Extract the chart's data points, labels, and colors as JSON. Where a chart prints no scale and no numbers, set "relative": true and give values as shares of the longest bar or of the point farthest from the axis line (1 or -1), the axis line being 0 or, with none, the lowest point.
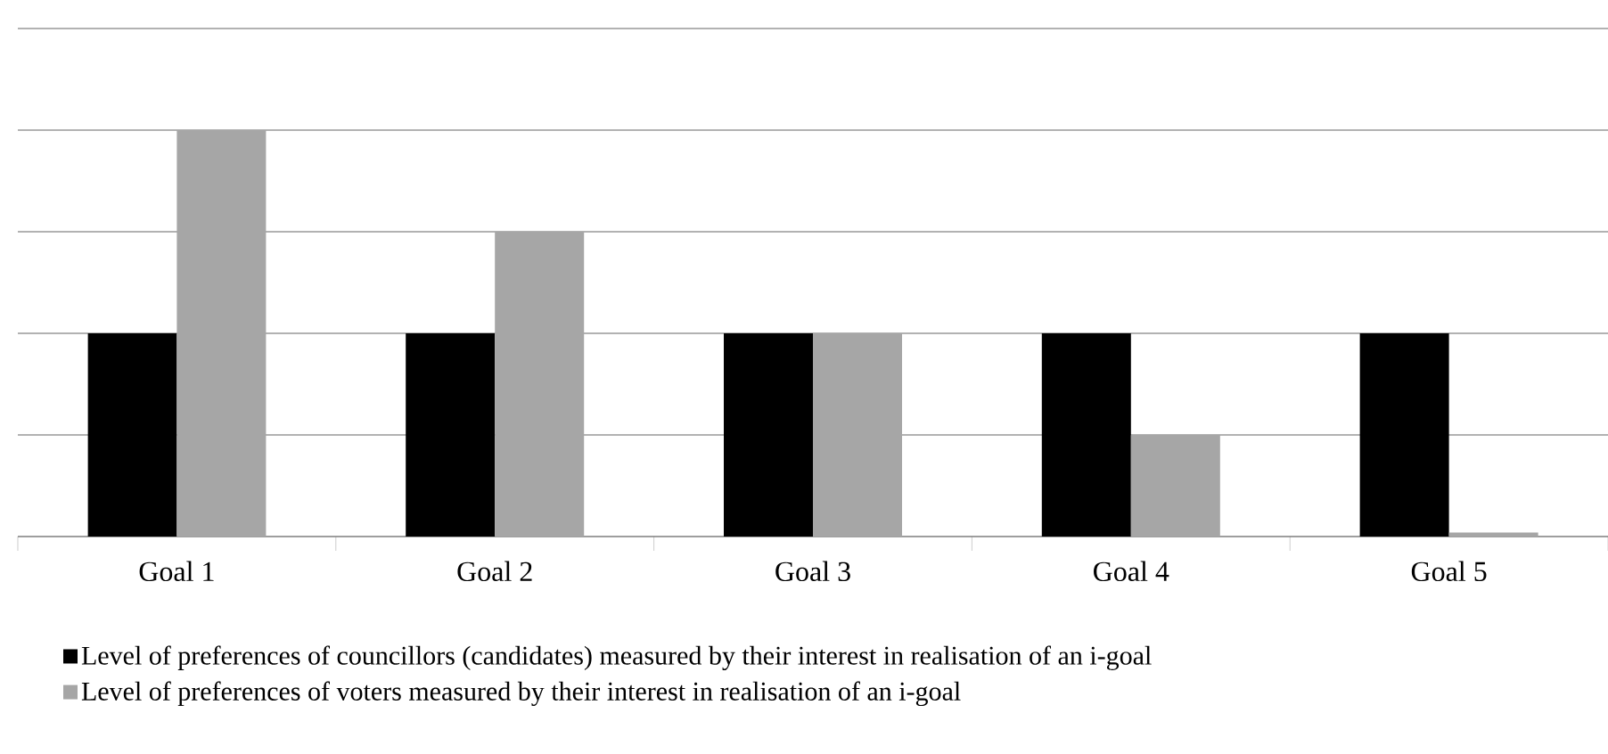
{
  "chart_data": {
    "type": "bar",
    "relative": true,
    "grid": "y",
    "legend": "bottom left",
    "categories": [
      "Goal 1",
      "Goal 2",
      "Goal 3",
      "Goal 4",
      "Goal 5"
    ],
    "series": [
      {
        "name": "Level of preferences of councillors (candidates) measured by their interest in realisation of an i-goal",
        "color": "#000000",
        "values": [
          0.5,
          0.5,
          0.5,
          0.5,
          0.5
        ]
      },
      {
        "name": "Level of preferences of voters measured by their interest in realisation of an i-goal",
        "color": "#a6a6a6",
        "values": [
          1,
          0.75,
          0.5,
          0.25,
          0.01
        ]
      }
    ]
  }
}
